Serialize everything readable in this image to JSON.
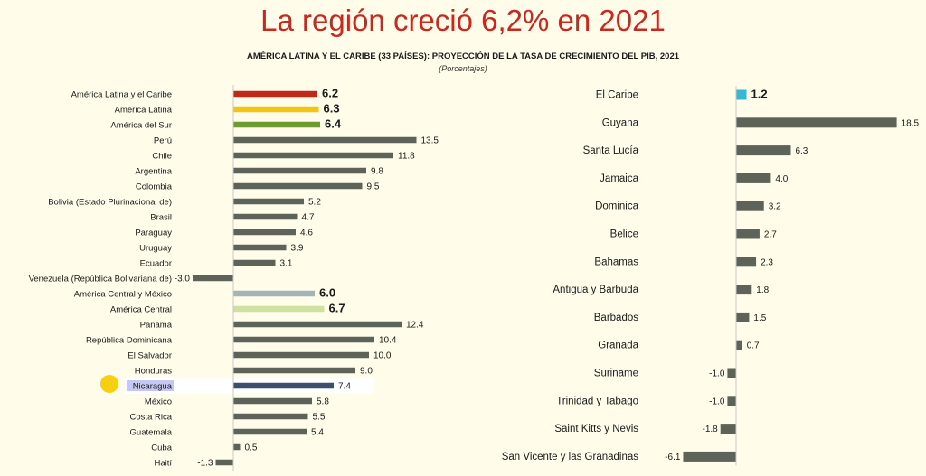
{
  "header": {
    "title": "La región creció 6,2% en 2021",
    "subtitle": "AMÉRICA LATINA Y EL CARIBE (33 PAÍSES): PROYECCIÓN DE LA TASA DE CRECIMIENTO DEL PIB, 2021",
    "units": "(Porcentajes)"
  },
  "colors": {
    "default_bar": "#5d6358",
    "region_total": "#c0281a",
    "latin_america": "#f2c413",
    "south_america": "#6f9a2f",
    "central_america_mexico": "#a3b3b8",
    "central_america": "#cfe0a0",
    "nicaragua": "#3e4f6e",
    "caribbean": "#35b8d4",
    "highlight_marker": "#f5cf10",
    "highlight_label_bg": "#c4c8f2"
  },
  "chart_data": [
    {
      "type": "bar",
      "orientation": "horizontal",
      "categories": [
        "América Latina y el Caribe",
        "América Latina",
        "América del Sur",
        "Perú",
        "Chile",
        "Argentina",
        "Colombia",
        "Bolivia (Estado Plurinacional de)",
        "Brasil",
        "Paraguay",
        "Uruguay",
        "Ecuador",
        "Venezuela (República Bolivariana de)",
        "América Central y México",
        "América Central",
        "Panamá",
        "República Dominicana",
        "El Salvador",
        "Honduras",
        "Nicaragua",
        "México",
        "Costa Rica",
        "Guatemala",
        "Cuba",
        "Haití"
      ],
      "values": [
        6.2,
        6.3,
        6.4,
        13.5,
        11.8,
        9.8,
        9.5,
        5.2,
        4.7,
        4.6,
        3.9,
        3.1,
        -3.0,
        6.0,
        6.7,
        12.4,
        10.4,
        10.0,
        9.0,
        7.4,
        5.8,
        5.5,
        5.4,
        0.5,
        -1.3
      ],
      "value_labels": [
        "6.2",
        "6.3",
        "6.4",
        "13.5",
        "11.8",
        "9.8",
        "9.5",
        "5.2",
        "4.7",
        "4.6",
        "3.9",
        "3.1",
        "-3.0",
        "6.0",
        "6.7",
        "12.4",
        "10.4",
        "10.0",
        "9.0",
        "7.4",
        "5.8",
        "5.5",
        "5.4",
        "0.5",
        "-1.3"
      ],
      "bold_labels": [
        0,
        1,
        2,
        13,
        14
      ],
      "bar_colors": {
        "0": "region_total",
        "1": "latin_america",
        "2": "south_america",
        "13": "central_america_mexico",
        "14": "central_america",
        "19": "nicaragua"
      },
      "highlighted": "Nicaragua"
    },
    {
      "type": "bar",
      "orientation": "horizontal",
      "categories": [
        "El Caribe",
        "Guyana",
        "Santa Lucía",
        "Jamaica",
        "Dominica",
        "Belice",
        "Bahamas",
        "Antigua y Barbuda",
        "Barbados",
        "Granada",
        "Suriname",
        "Trinidad y Tabago",
        "Saint Kitts y Nevis",
        "San Vicente y las Granadinas"
      ],
      "values": [
        1.2,
        18.5,
        6.3,
        4.0,
        3.2,
        2.7,
        2.3,
        1.8,
        1.5,
        0.7,
        -1.0,
        -1.0,
        -1.8,
        -6.1
      ],
      "value_labels": [
        "1.2",
        "18.5",
        "6.3",
        "4.0",
        "3.2",
        "2.7",
        "2.3",
        "1.8",
        "1.5",
        "0.7",
        "-1.0",
        "-1.0",
        "-1.8",
        "-6.1"
      ],
      "bold_labels": [
        0
      ],
      "bar_colors": {
        "0": "caribbean"
      }
    }
  ]
}
